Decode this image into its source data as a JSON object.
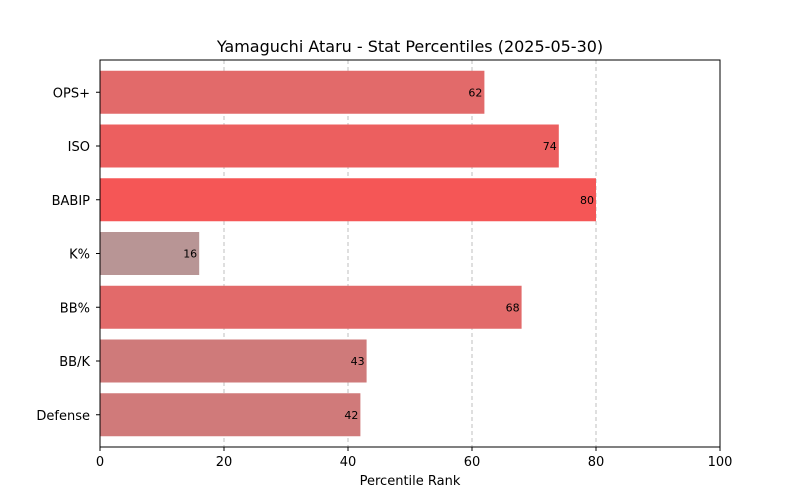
{
  "chart_data": {
    "type": "bar",
    "orientation": "horizontal",
    "title": "Yamaguchi Ataru - Stat Percentiles (2025-05-30)",
    "xlabel": "Percentile Rank",
    "ylabel": "",
    "xlim": [
      0,
      100
    ],
    "xticks": [
      0,
      20,
      40,
      60,
      80,
      100
    ],
    "grid": "x-axis dashed",
    "categories": [
      "OPS+",
      "ISO",
      "BABIP",
      "K%",
      "BB%",
      "BB/K",
      "Defense"
    ],
    "values": [
      62,
      74,
      80,
      16,
      68,
      43,
      42
    ],
    "colors": [
      "#e26a6a",
      "#ec5f5f",
      "#f55656",
      "#b89595",
      "#e26a6a",
      "#cf7a7a",
      "#d07a7a"
    ]
  }
}
